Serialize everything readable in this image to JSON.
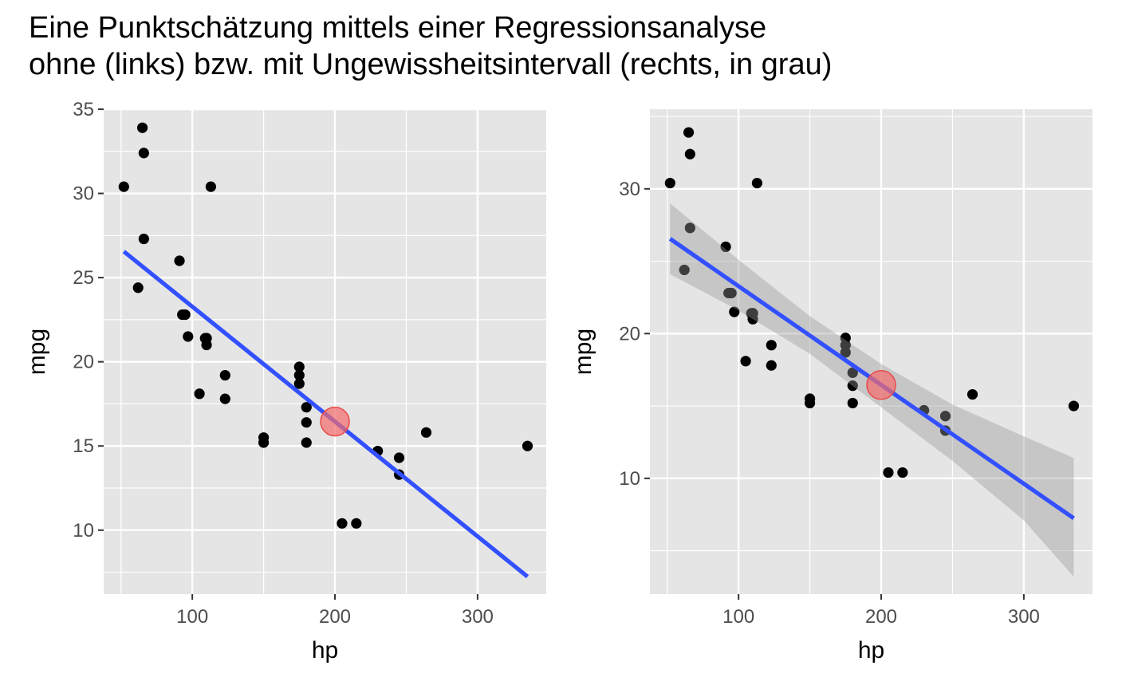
{
  "title": {
    "line1": "Eine Punktschätzung mittels einer Regressionsanalyse",
    "line2": "ohne (links) bzw. mit Ungewissheitsintervall (rechts, in grau)"
  },
  "colors": {
    "panel": "#e5e5e5",
    "grid": "#ffffff",
    "point": "#000000",
    "line": "#3350ff",
    "highlight": "#f36b6b",
    "highlight_stroke": "#e84a4a",
    "ribbon": "#999999",
    "axis_text": "#4d4d4d"
  },
  "chart_data": [
    {
      "type": "scatter",
      "xlabel": "hp",
      "ylabel": "mpg",
      "xlim": [
        37.85,
        348.15
      ],
      "ylim": [
        6.2,
        35.0
      ],
      "xticks": [
        100,
        200,
        300
      ],
      "yticks": [
        10,
        15,
        20,
        25,
        30,
        35
      ],
      "show_ribbon": false,
      "points": [
        {
          "hp": 110,
          "mpg": 21.0
        },
        {
          "hp": 110,
          "mpg": 21.4
        },
        {
          "hp": 93,
          "mpg": 22.8
        },
        {
          "hp": 110,
          "mpg": 21.4
        },
        {
          "hp": 175,
          "mpg": 18.7
        },
        {
          "hp": 105,
          "mpg": 18.1
        },
        {
          "hp": 245,
          "mpg": 14.3
        },
        {
          "hp": 62,
          "mpg": 24.4
        },
        {
          "hp": 95,
          "mpg": 22.8
        },
        {
          "hp": 123,
          "mpg": 19.2
        },
        {
          "hp": 123,
          "mpg": 17.8
        },
        {
          "hp": 180,
          "mpg": 16.4
        },
        {
          "hp": 180,
          "mpg": 17.3
        },
        {
          "hp": 180,
          "mpg": 15.2
        },
        {
          "hp": 205,
          "mpg": 10.4
        },
        {
          "hp": 215,
          "mpg": 10.4
        },
        {
          "hp": 230,
          "mpg": 14.7
        },
        {
          "hp": 66,
          "mpg": 32.4
        },
        {
          "hp": 52,
          "mpg": 30.4
        },
        {
          "hp": 65,
          "mpg": 33.9
        },
        {
          "hp": 97,
          "mpg": 21.5
        },
        {
          "hp": 150,
          "mpg": 15.5
        },
        {
          "hp": 150,
          "mpg": 15.2
        },
        {
          "hp": 245,
          "mpg": 13.3
        },
        {
          "hp": 175,
          "mpg": 19.2
        },
        {
          "hp": 66,
          "mpg": 27.3
        },
        {
          "hp": 91,
          "mpg": 26.0
        },
        {
          "hp": 113,
          "mpg": 30.4
        },
        {
          "hp": 264,
          "mpg": 15.8
        },
        {
          "hp": 175,
          "mpg": 19.7
        },
        {
          "hp": 335,
          "mpg": 15.0
        },
        {
          "hp": 109,
          "mpg": 21.4
        }
      ],
      "regression": {
        "x_start": 52,
        "y_start": 26.55,
        "x_end": 335,
        "y_end": 7.24
      },
      "highlight": {
        "hp": 200,
        "mpg": 16.45
      }
    },
    {
      "type": "scatter",
      "xlabel": "hp",
      "ylabel": "mpg",
      "xlim": [
        37.85,
        348.15
      ],
      "ylim": [
        2.0,
        35.5
      ],
      "xticks": [
        100,
        200,
        300
      ],
      "yticks": [
        10,
        20,
        30
      ],
      "show_ribbon": true,
      "points": [
        {
          "hp": 110,
          "mpg": 21.0
        },
        {
          "hp": 110,
          "mpg": 21.4
        },
        {
          "hp": 93,
          "mpg": 22.8
        },
        {
          "hp": 110,
          "mpg": 21.4
        },
        {
          "hp": 175,
          "mpg": 18.7
        },
        {
          "hp": 105,
          "mpg": 18.1
        },
        {
          "hp": 245,
          "mpg": 14.3
        },
        {
          "hp": 62,
          "mpg": 24.4
        },
        {
          "hp": 95,
          "mpg": 22.8
        },
        {
          "hp": 123,
          "mpg": 19.2
        },
        {
          "hp": 123,
          "mpg": 17.8
        },
        {
          "hp": 180,
          "mpg": 16.4
        },
        {
          "hp": 180,
          "mpg": 17.3
        },
        {
          "hp": 180,
          "mpg": 15.2
        },
        {
          "hp": 205,
          "mpg": 10.4
        },
        {
          "hp": 215,
          "mpg": 10.4
        },
        {
          "hp": 230,
          "mpg": 14.7
        },
        {
          "hp": 66,
          "mpg": 32.4
        },
        {
          "hp": 52,
          "mpg": 30.4
        },
        {
          "hp": 65,
          "mpg": 33.9
        },
        {
          "hp": 97,
          "mpg": 21.5
        },
        {
          "hp": 150,
          "mpg": 15.5
        },
        {
          "hp": 150,
          "mpg": 15.2
        },
        {
          "hp": 245,
          "mpg": 13.3
        },
        {
          "hp": 175,
          "mpg": 19.2
        },
        {
          "hp": 66,
          "mpg": 27.3
        },
        {
          "hp": 91,
          "mpg": 26.0
        },
        {
          "hp": 113,
          "mpg": 30.4
        },
        {
          "hp": 264,
          "mpg": 15.8
        },
        {
          "hp": 175,
          "mpg": 19.7
        },
        {
          "hp": 335,
          "mpg": 15.0
        },
        {
          "hp": 109,
          "mpg": 21.4
        }
      ],
      "regression": {
        "x_start": 52,
        "y_start": 26.55,
        "x_end": 335,
        "y_end": 7.24
      },
      "ribbon": {
        "x": [
          52,
          100,
          150,
          200,
          250,
          300,
          335
        ],
        "lower": [
          24.1,
          21.6,
          18.6,
          14.9,
          11.2,
          7.1,
          3.2
        ],
        "upper": [
          29.0,
          25.1,
          21.2,
          17.9,
          15.1,
          12.9,
          11.4
        ]
      },
      "highlight": {
        "hp": 200,
        "mpg": 16.45
      }
    }
  ]
}
